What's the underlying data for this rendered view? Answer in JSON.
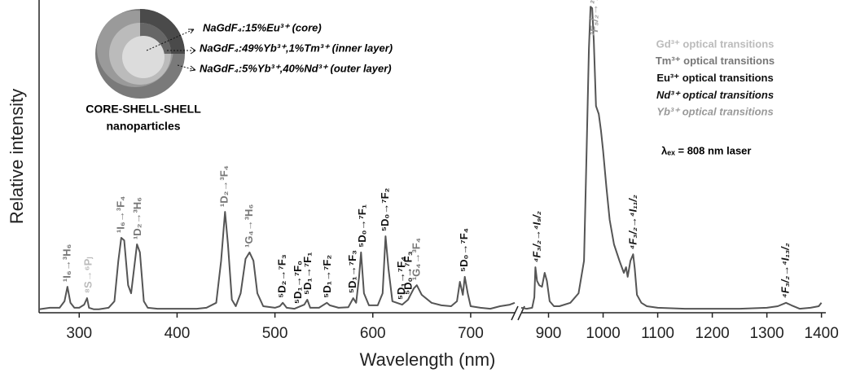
{
  "chart_data": {
    "type": "line",
    "xlabel": "Wavelength (nm)",
    "ylabel": "Relative intensity",
    "xlim": [
      [
        259,
        745
      ],
      [
        850,
        1405
      ]
    ],
    "xticks": [
      300,
      400,
      500,
      600,
      700,
      900,
      1000,
      1100,
      1200,
      1300,
      1400
    ],
    "ylim": [
      0,
      1
    ],
    "color": "#555555",
    "x": [
      259,
      270,
      280,
      285,
      288,
      291,
      295,
      300,
      305,
      308,
      310,
      315,
      320,
      330,
      336,
      340,
      343,
      346,
      350,
      353,
      356,
      359,
      362,
      366,
      370,
      380,
      400,
      420,
      430,
      440,
      445,
      449,
      452,
      456,
      460,
      465,
      470,
      474,
      478,
      482,
      488,
      500,
      505,
      508,
      512,
      520,
      530,
      533,
      536,
      545,
      553,
      556,
      565,
      575,
      580,
      583,
      586,
      588,
      591,
      596,
      605,
      610,
      613,
      616,
      620,
      630,
      636,
      642,
      645,
      650,
      660,
      670,
      680,
      686,
      689,
      692,
      694,
      697,
      700,
      710,
      720,
      730,
      740,
      745,
      800,
      850,
      860,
      870,
      874,
      876,
      879,
      883,
      888,
      893,
      897,
      902,
      910,
      920,
      940,
      955,
      965,
      970,
      974,
      977,
      980,
      983,
      987,
      992,
      996,
      1000,
      1006,
      1012,
      1020,
      1030,
      1038,
      1042,
      1045,
      1050,
      1055,
      1058,
      1062,
      1070,
      1080,
      1100,
      1150,
      1200,
      1250,
      1300,
      1320,
      1335,
      1345,
      1360,
      1380,
      1395,
      1400
    ],
    "values": [
      0.011,
      0.016,
      0.016,
      0.037,
      0.084,
      0.032,
      0.016,
      0.016,
      0.026,
      0.047,
      0.016,
      0.011,
      0.011,
      0.016,
      0.037,
      0.168,
      0.242,
      0.234,
      0.089,
      0.063,
      0.142,
      0.221,
      0.195,
      0.037,
      0.016,
      0.013,
      0.013,
      0.013,
      0.016,
      0.032,
      0.168,
      0.326,
      0.221,
      0.042,
      0.021,
      0.063,
      0.174,
      0.195,
      0.168,
      0.063,
      0.021,
      0.016,
      0.021,
      0.032,
      0.016,
      0.013,
      0.026,
      0.042,
      0.016,
      0.016,
      0.032,
      0.024,
      0.016,
      0.018,
      0.047,
      0.032,
      0.116,
      0.195,
      0.063,
      0.024,
      0.024,
      0.063,
      0.247,
      0.142,
      0.037,
      0.026,
      0.042,
      0.079,
      0.089,
      0.058,
      0.032,
      0.024,
      0.021,
      0.037,
      0.1,
      0.058,
      0.116,
      0.063,
      0.021,
      0.016,
      0.013,
      0.021,
      0.026,
      0.032,
      null,
      0.016,
      0.013,
      0.016,
      0.05,
      0.147,
      0.103,
      0.089,
      0.084,
      0.129,
      0.103,
      0.037,
      0.021,
      0.021,
      0.032,
      0.063,
      0.168,
      0.537,
      0.853,
      0.989,
      0.984,
      0.879,
      0.668,
      0.642,
      0.589,
      0.524,
      0.405,
      0.3,
      0.221,
      0.168,
      0.129,
      0.147,
      0.116,
      0.168,
      0.189,
      0.142,
      0.058,
      0.032,
      0.021,
      0.016,
      0.013,
      0.013,
      0.013,
      0.016,
      0.021,
      0.032,
      0.024,
      0.013,
      0.016,
      0.021,
      0.032
    ],
    "groups": [
      {
        "name": "Gd³⁺ optical transitions",
        "color": "#bbbbbb",
        "italic": false,
        "labels": [
          {
            "text": "⁸S→⁶Pⱼ",
            "x": 310
          }
        ]
      },
      {
        "name": "Tm³⁺ optical transitions",
        "color": "#777777",
        "italic": false,
        "labels": [
          {
            "text": "¹I₆→³H₆",
            "x": 288
          },
          {
            "text": "¹I₆→³F₄",
            "x": 343
          },
          {
            "text": "¹D₂→³H₆",
            "x": 360
          },
          {
            "text": "¹D₂→³F₄",
            "x": 449
          },
          {
            "text": "¹G₄→³H₆",
            "x": 474
          },
          {
            "text": "¹G₄→³F₄",
            "x": 645
          }
        ]
      },
      {
        "name": "Eu³⁺ optical transitions",
        "color": "#111111",
        "italic": false,
        "labels": [
          {
            "text": "⁵D₂→⁷F₃",
            "x": 508
          },
          {
            "text": "⁵D₁→⁷F₀",
            "x": 524
          },
          {
            "text": "⁵D₁→⁷F₁",
            "x": 534
          },
          {
            "text": "⁵D₁→⁷F₂",
            "x": 554
          },
          {
            "text": "⁵D₁→⁷F₃",
            "x": 580
          },
          {
            "text": "⁵D₀→⁷F₁",
            "x": 590
          },
          {
            "text": "⁵D₀→⁷F₂",
            "x": 613
          },
          {
            "text": "⁵D₁→⁷F₄",
            "x": 630
          },
          {
            "text": "⁵D₀→⁷F₃",
            "x": 637
          },
          {
            "text": "⁵D₀→⁷F₄",
            "x": 694
          }
        ]
      },
      {
        "name": "Nd³⁺ optical transitions",
        "color": "#111111",
        "italic": true,
        "labels": [
          {
            "text": "⁴F₃/₂→⁴I₉/₂",
            "x": 880
          },
          {
            "text": "⁴F₃/₂→⁴I₁₁/₂",
            "x": 1056
          },
          {
            "text": "⁴F₃/₂→⁴I₁₃/₂",
            "x": 1335
          }
        ]
      },
      {
        "name": "Yb³⁺ optical transitions",
        "color": "#999999",
        "italic": true,
        "labels": [
          {
            "text": "²F₅/₂→²F₇/₂",
            "x": 985
          }
        ]
      }
    ],
    "inset": [
      "NaGdF₄:15%Eu³⁺ (core)",
      "NaGdF₄:49%Yb³⁺,1%Tm³⁺ (inner layer)",
      "NaGdF₄:5%Yb³⁺,40%Nd³⁺ (outer layer)"
    ],
    "inset_caption": [
      "CORE-SHELL-SHELL",
      "nanoparticles"
    ],
    "note": "λₑₓ = 808 nm laser"
  }
}
